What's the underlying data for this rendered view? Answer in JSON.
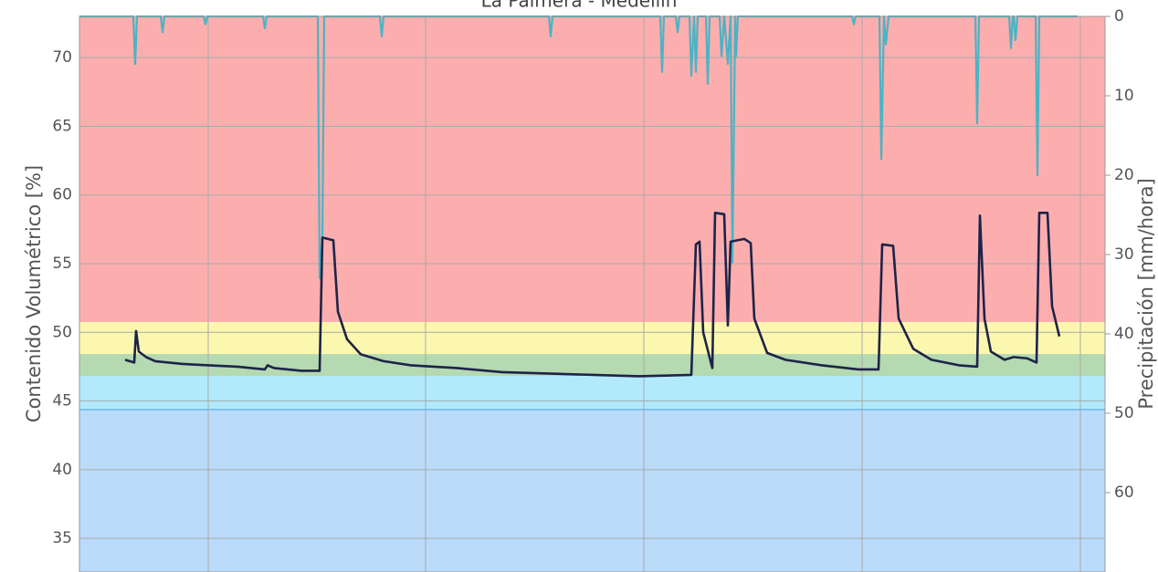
{
  "chart_data": {
    "type": "line",
    "title": "La Palmera - Medellín",
    "ylabel": "Contenido Volumétrico [%]",
    "y2label": "Precipitación [mm/hora]",
    "ylim": [
      32.55,
      73
    ],
    "yticks": [
      35,
      40,
      45,
      50,
      55,
      60,
      65,
      70
    ],
    "y2lim": [
      0,
      70
    ],
    "y2ticks": [
      0,
      10,
      20,
      30,
      40,
      50,
      60
    ],
    "y2_inverted": true,
    "xlim": [
      0,
      1123
    ],
    "grid": true,
    "bands": [
      {
        "from": 50.74,
        "to": 73,
        "color": "#fcaeae"
      },
      {
        "from": 48.42,
        "to": 50.74,
        "color": "#fbf7ae"
      },
      {
        "from": 46.83,
        "to": 48.42,
        "color": "#b5d9b0"
      },
      {
        "from": 44.37,
        "to": 46.83,
        "color": "#b2eafb"
      },
      {
        "from": 32.55,
        "to": 44.37,
        "color": "#bbdbfb"
      }
    ],
    "series": [
      {
        "color": "#1e2349",
        "axis": "y",
        "x": [
          50,
          60,
          62,
          65,
          73,
          83,
          113,
          141,
          173,
          203,
          206,
          213,
          243,
          263,
          266,
          278,
          283,
          293,
          308,
          333,
          363,
          413,
          463,
          513,
          563,
          613,
          670,
          675,
          679,
          683,
          693,
          696,
          706,
          710,
          713,
          728,
          735,
          739,
          753,
          773,
          813,
          853,
          875,
          879,
          891,
          897,
          913,
          933,
          963,
          983,
          986,
          991,
          998,
          1013,
          1023,
          1038,
          1048,
          1051,
          1060,
          1065,
          1073
        ],
        "values": [
          48.0,
          47.8,
          50.1,
          48.6,
          48.2,
          47.9,
          47.7,
          47.6,
          47.5,
          47.3,
          47.6,
          47.4,
          47.2,
          47.2,
          56.9,
          56.7,
          51.5,
          49.5,
          48.4,
          47.9,
          47.6,
          47.4,
          47.1,
          47.0,
          46.9,
          46.8,
          46.9,
          56.4,
          56.6,
          50,
          47.4,
          58.7,
          58.6,
          50.5,
          56.6,
          56.8,
          56.5,
          51,
          48.5,
          48.0,
          47.6,
          47.3,
          47.3,
          56.4,
          56.3,
          51.0,
          48.8,
          48.0,
          47.6,
          47.5,
          58.5,
          51,
          48.6,
          48.0,
          48.2,
          48.1,
          47.8,
          58.7,
          58.7,
          51.9,
          49.7
        ]
      },
      {
        "color": "#4cb3c4",
        "axis": "y2",
        "x": [
          0,
          59,
          61,
          63,
          89,
          91,
          93,
          136,
          138,
          140,
          201,
          203,
          205,
          261,
          263,
          266,
          268,
          329,
          331,
          333,
          514,
          516,
          518,
          636,
          638,
          640,
          653,
          655,
          657,
          668,
          670,
          673,
          675,
          677,
          686,
          688,
          690,
          701,
          703,
          706,
          710,
          713,
          715,
          718,
          719,
          721,
          846,
          848,
          850,
          876,
          878,
          881,
          883,
          886,
          981,
          983,
          985,
          1018,
          1020,
          1022,
          1023,
          1025,
          1027,
          1047,
          1049,
          1051,
          1093
        ],
        "values": [
          0,
          0,
          6,
          0,
          0,
          2,
          0,
          0,
          1,
          0,
          0,
          1.5,
          0,
          0,
          33,
          28,
          0,
          0,
          2.5,
          0,
          0,
          2.5,
          0,
          0,
          7,
          0,
          0,
          2,
          0,
          0,
          7.5,
          0,
          7,
          0,
          0,
          8.5,
          0,
          0,
          5,
          0,
          6,
          0,
          31,
          0,
          5,
          0,
          0,
          1,
          0,
          0,
          18,
          0,
          3.5,
          0,
          0,
          13.5,
          0,
          0,
          4,
          0,
          0,
          3,
          0,
          0,
          20,
          0,
          0
        ]
      }
    ]
  }
}
